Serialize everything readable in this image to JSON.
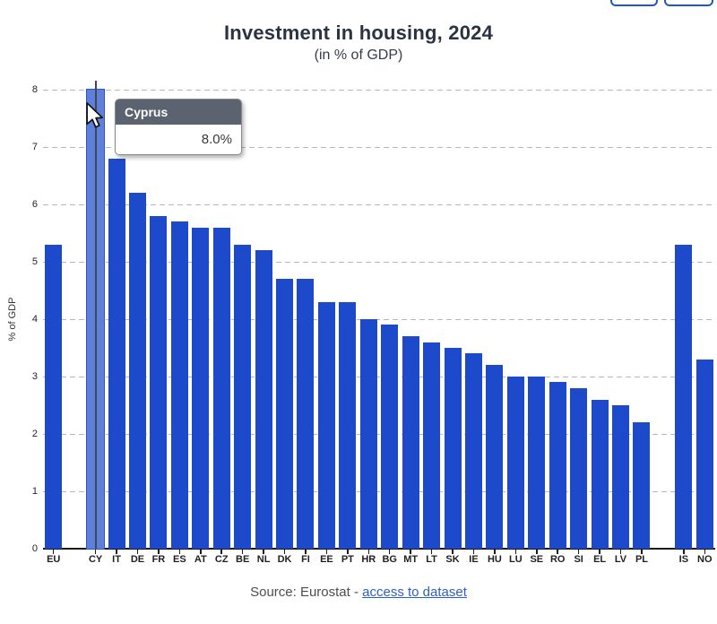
{
  "header": {
    "title": "Investment in housing, 2024",
    "subtitle": "(in % of GDP)"
  },
  "chart_data": {
    "type": "bar",
    "title": "Investment in housing, 2024",
    "subtitle": "(in % of GDP)",
    "xlabel": "",
    "ylabel": "% of GDP",
    "ylim": [
      0,
      8
    ],
    "yticks": [
      0,
      1,
      2,
      3,
      4,
      5,
      6,
      7,
      8
    ],
    "grid": "horizontal-dashed",
    "legend": "none",
    "categories": [
      "EU",
      "CY",
      "IT",
      "DE",
      "FR",
      "ES",
      "AT",
      "CZ",
      "BE",
      "NL",
      "DK",
      "FI",
      "EE",
      "PT",
      "HR",
      "BG",
      "MT",
      "LT",
      "SK",
      "IE",
      "HU",
      "LU",
      "SE",
      "RO",
      "SI",
      "EL",
      "LV",
      "PL",
      "IS",
      "NO"
    ],
    "values": [
      5.3,
      8.0,
      6.8,
      6.2,
      5.8,
      5.7,
      5.6,
      5.6,
      5.3,
      5.2,
      4.7,
      4.7,
      4.3,
      4.3,
      4.0,
      3.9,
      3.7,
      3.6,
      3.5,
      3.4,
      3.2,
      3.0,
      3.0,
      2.9,
      2.8,
      2.6,
      2.5,
      2.2,
      5.3,
      3.3
    ],
    "gaps_after": [
      "EU",
      "PL"
    ],
    "highlighted_category": "CY",
    "colors": {
      "bar": "#1d49cb",
      "highlighted_bar": "#5f7fd9",
      "crosshair": "#3c485e",
      "button_border": "#2256c7"
    }
  },
  "tooltip": {
    "title": "Cyprus",
    "value": "8.0%"
  },
  "footer": {
    "prefix": "Source: Eurostat - ",
    "link": "access to dataset"
  }
}
